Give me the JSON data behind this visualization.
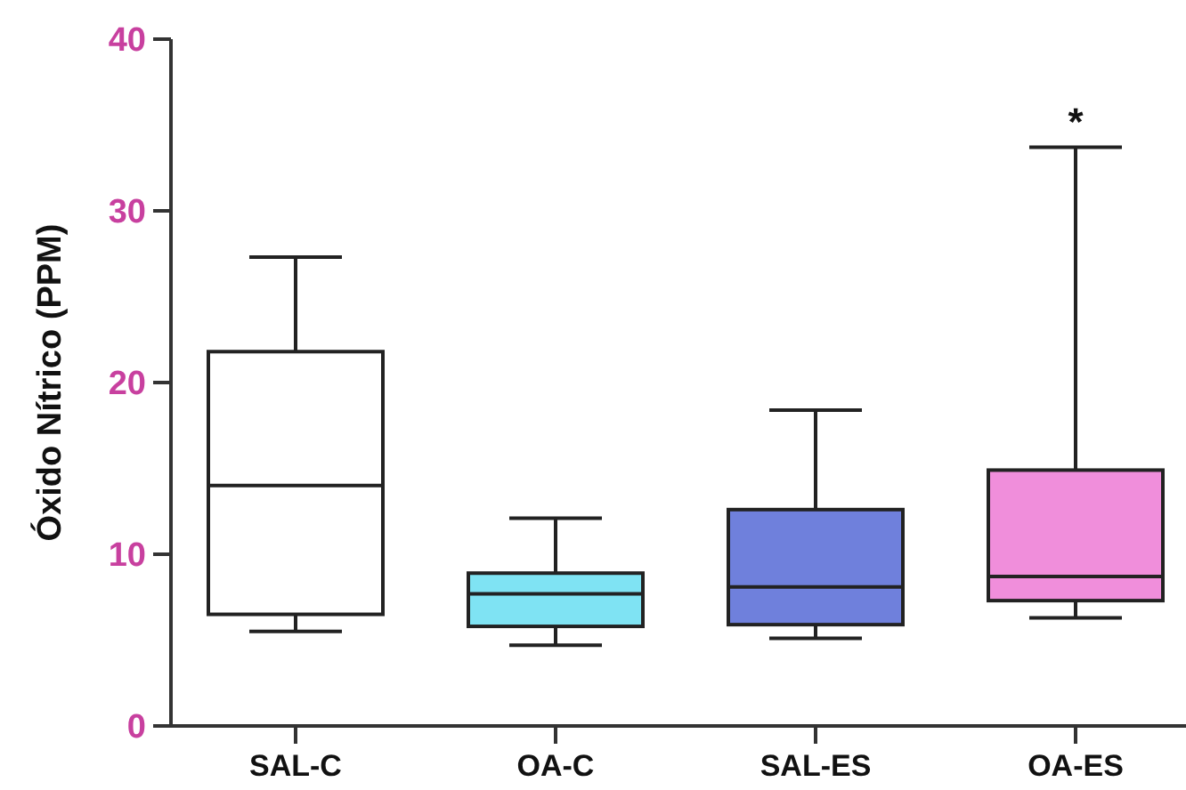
{
  "chart_data": {
    "type": "box",
    "ylabel": "Óxido Nítrico (PPM)",
    "categories": [
      "SAL-C",
      "OA-C",
      "SAL-ES",
      "OA-ES"
    ],
    "colors": [
      "#ffffff",
      "#7fe3f3",
      "#6f80dc",
      "#f08edb"
    ],
    "boxes": [
      {
        "low": 5.5,
        "q1": 6.5,
        "median": 14,
        "q3": 21.8,
        "high": 27.3
      },
      {
        "low": 4.7,
        "q1": 5.8,
        "median": 7.7,
        "q3": 8.9,
        "high": 12.1
      },
      {
        "low": 5.1,
        "q1": 5.9,
        "median": 8.1,
        "q3": 12.6,
        "high": 18.4
      },
      {
        "low": 6.3,
        "q1": 7.3,
        "median": 8.7,
        "q3": 14.9,
        "high": 33.7
      }
    ],
    "ylim": [
      0,
      40
    ],
    "yticks": [
      0,
      10,
      20,
      30,
      40
    ],
    "annotations": [
      "*"
    ]
  }
}
